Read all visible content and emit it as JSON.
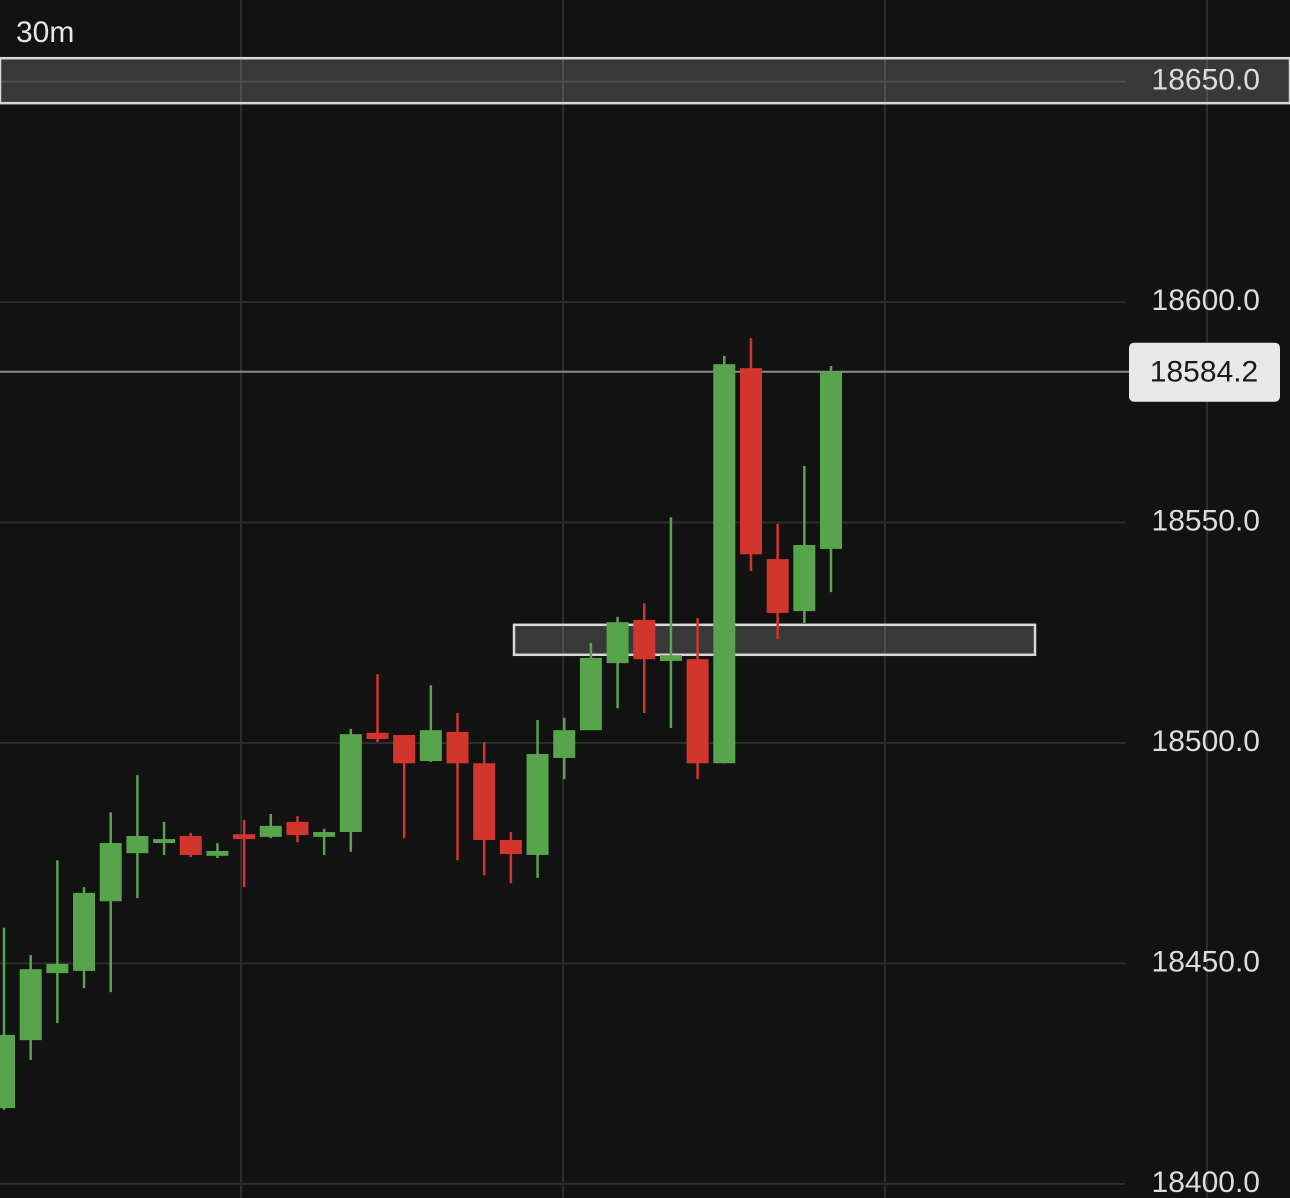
{
  "chart_data": {
    "type": "candlestick",
    "timeframe": "30m",
    "up_color": "#58a44c",
    "down_color": "#d2352c",
    "open": [
      18417.2,
      18432.6,
      18447.8,
      18448.3,
      18464.1,
      18475.0,
      18477.3,
      18478.9,
      18474.4,
      18479.3,
      18478.7,
      18482.1,
      18478.7,
      18479.8,
      18502.3,
      18501.8,
      18495.9,
      18502.5,
      18495.4,
      18478.0,
      18474.6,
      18496.6,
      18502.9,
      18518.1,
      18527.9,
      18518.6,
      18519.0,
      18495.4,
      18585.0,
      18541.7,
      18529.9,
      18544.0
    ],
    "high": [
      18458.1,
      18451.9,
      18473.4,
      18467.3,
      18484.3,
      18492.7,
      18482.1,
      18479.6,
      18477.3,
      18482.5,
      18483.9,
      18483.4,
      18480.5,
      18503.2,
      18515.6,
      18501.8,
      18513.1,
      18506.8,
      18500.2,
      18479.8,
      18505.2,
      18505.7,
      18522.7,
      18528.6,
      18531.7,
      18551.2,
      18528.3,
      18587.8,
      18591.8,
      18549.7,
      18562.8,
      18585.5
    ],
    "low": [
      18416.8,
      18428.1,
      18436.5,
      18444.4,
      18443.5,
      18464.8,
      18474.6,
      18474.1,
      18473.9,
      18467.3,
      18478.4,
      18477.5,
      18474.6,
      18475.3,
      18500.2,
      18478.4,
      18495.7,
      18473.4,
      18470.0,
      18468.2,
      18469.4,
      18491.8,
      18502.9,
      18507.9,
      18506.8,
      18503.4,
      18491.8,
      18495.4,
      18539.0,
      18523.6,
      18527.2,
      18534.2
    ],
    "close": [
      18433.8,
      18448.7,
      18449.9,
      18466.0,
      18477.3,
      18478.9,
      18478.2,
      18474.6,
      18475.5,
      18478.2,
      18481.2,
      18479.1,
      18479.8,
      18502.0,
      18500.9,
      18495.4,
      18502.9,
      18495.4,
      18478.0,
      18474.8,
      18497.5,
      18502.9,
      18519.3,
      18527.4,
      18519.0,
      18519.9,
      18495.4,
      18585.9,
      18542.8,
      18529.5,
      18544.9,
      18584.2
    ],
    "last_price": 18584.2,
    "zones": [
      {
        "top": 18655.3,
        "bottom": 18645.1
      },
      {
        "top": 18526.8,
        "bottom": 18520.0
      }
    ],
    "ylim": [
      18396.8,
      18668.5
    ],
    "yticks": [
      {
        "value": 18400,
        "label": "18400.0"
      },
      {
        "value": 18450,
        "label": "18450.0"
      },
      {
        "value": 18500,
        "label": "18500.0"
      },
      {
        "value": 18550,
        "label": "18550.0"
      },
      {
        "value": 18600,
        "label": "18600.0"
      },
      {
        "value": 18650,
        "label": "18650.0"
      }
    ],
    "grid": true
  }
}
